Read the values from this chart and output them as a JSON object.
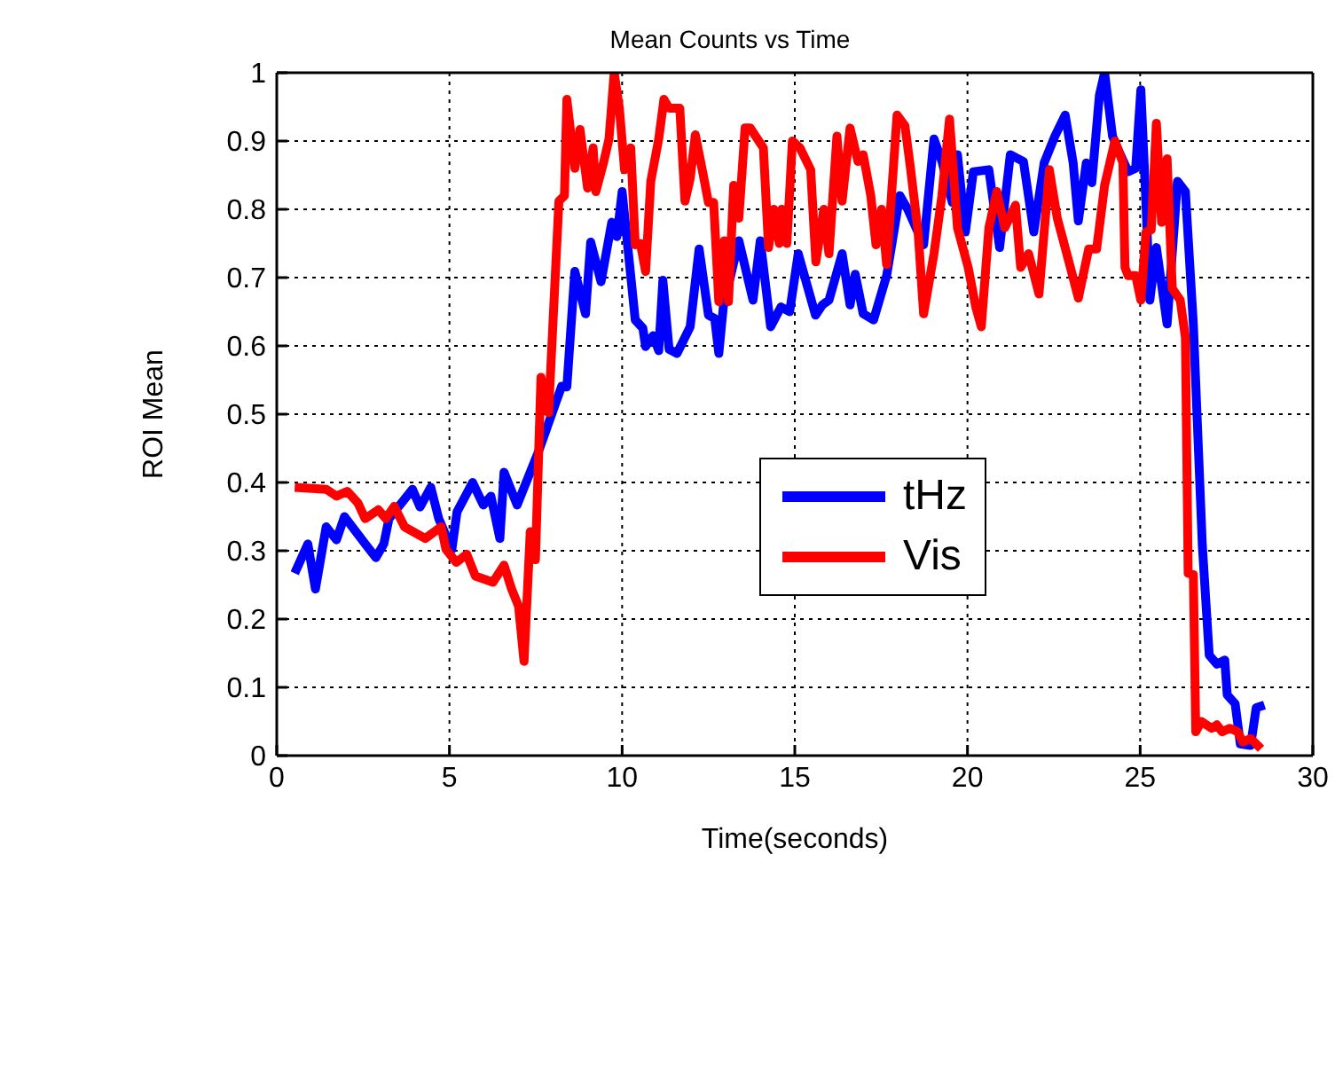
{
  "chart_data": {
    "type": "line",
    "title": "Mean Counts vs Time",
    "xlabel": "Time(seconds)",
    "ylabel": "ROI Mean",
    "xlim": [
      0,
      30
    ],
    "xticks": [
      0,
      5,
      10,
      15,
      20,
      25,
      30
    ],
    "ylim": [
      0,
      1
    ],
    "yticks": [
      0,
      0.1,
      0.2,
      0.3,
      0.4,
      0.5,
      0.6,
      0.7,
      0.8,
      0.9,
      1
    ],
    "grid": true,
    "legend": "right",
    "marker": "none",
    "line_style": "solid",
    "series": [
      {
        "name": "tHz",
        "color": "#0000ff",
        "x": [
          0.52,
          0.9,
          1.12,
          1.43,
          1.73,
          1.96,
          2.56,
          2.87,
          3.1,
          3.25,
          3.93,
          4.15,
          4.46,
          4.69,
          5.07,
          5.22,
          5.67,
          5.98,
          6.2,
          6.46,
          6.58,
          6.96,
          7.34,
          7.57,
          8.25,
          8.4,
          8.63,
          8.94,
          9.09,
          9.39,
          9.7,
          9.85,
          10.0,
          10.38,
          10.6,
          10.68,
          10.9,
          11.06,
          11.18,
          11.36,
          11.59,
          11.97,
          12.23,
          12.5,
          12.68,
          12.8,
          12.93,
          13.38,
          13.79,
          14.0,
          14.3,
          14.6,
          14.85,
          15.1,
          15.6,
          15.8,
          15.99,
          16.37,
          16.6,
          16.75,
          16.98,
          17.28,
          17.66,
          18.04,
          18.27,
          18.73,
          19.03,
          19.26,
          19.56,
          19.71,
          19.94,
          20.17,
          20.62,
          20.93,
          21.24,
          21.62,
          21.92,
          22.22,
          22.53,
          22.83,
          23.06,
          23.21,
          23.44,
          23.6,
          23.82,
          23.97,
          24.2,
          24.34,
          24.65,
          24.87,
          25.02,
          25.17,
          25.28,
          25.47,
          25.78,
          26.08,
          26.31,
          26.54,
          26.8,
          27.0,
          27.22,
          27.45,
          27.52,
          27.75,
          27.9,
          28.2,
          28.36,
          28.6
        ],
        "values": [
          0.267,
          0.31,
          0.244,
          0.335,
          0.316,
          0.35,
          0.31,
          0.29,
          0.31,
          0.347,
          0.39,
          0.364,
          0.393,
          0.347,
          0.302,
          0.357,
          0.4,
          0.367,
          0.38,
          0.318,
          0.415,
          0.367,
          0.415,
          0.444,
          0.541,
          0.54,
          0.709,
          0.647,
          0.752,
          0.694,
          0.781,
          0.76,
          0.826,
          0.638,
          0.626,
          0.599,
          0.615,
          0.593,
          0.696,
          0.595,
          0.589,
          0.628,
          0.742,
          0.645,
          0.64,
          0.589,
          0.657,
          0.754,
          0.667,
          0.754,
          0.628,
          0.657,
          0.65,
          0.735,
          0.645,
          0.66,
          0.667,
          0.735,
          0.66,
          0.705,
          0.647,
          0.638,
          0.703,
          0.82,
          0.8,
          0.748,
          0.903,
          0.87,
          0.81,
          0.88,
          0.767,
          0.855,
          0.858,
          0.744,
          0.88,
          0.87,
          0.767,
          0.868,
          0.907,
          0.938,
          0.868,
          0.783,
          0.868,
          0.839,
          0.967,
          1.0,
          0.907,
          0.89,
          0.855,
          0.86,
          0.975,
          0.806,
          0.667,
          0.744,
          0.632,
          0.841,
          0.826,
          0.632,
          0.308,
          0.147,
          0.134,
          0.14,
          0.089,
          0.076,
          0.017,
          0.015,
          0.07,
          0.074
        ]
      },
      {
        "name": "Vis",
        "color": "#ff0000",
        "x": [
          0.52,
          1.43,
          1.73,
          2.04,
          2.35,
          2.56,
          2.94,
          3.16,
          3.4,
          3.7,
          4.3,
          4.76,
          4.9,
          5.2,
          5.5,
          5.75,
          6.26,
          6.58,
          6.8,
          7.0,
          7.16,
          7.34,
          7.49,
          7.65,
          7.87,
          8.17,
          8.33,
          8.4,
          8.63,
          8.78,
          9.0,
          9.16,
          9.24,
          9.47,
          9.62,
          9.77,
          9.92,
          10.07,
          10.25,
          10.38,
          10.53,
          10.68,
          10.83,
          11.06,
          11.21,
          11.36,
          11.67,
          11.82,
          11.97,
          12.12,
          12.35,
          12.5,
          12.65,
          12.8,
          12.96,
          13.08,
          13.23,
          13.38,
          13.56,
          13.71,
          14.09,
          14.24,
          14.39,
          14.55,
          14.62,
          14.77,
          14.93,
          15.15,
          15.46,
          15.61,
          15.84,
          15.99,
          16.22,
          16.37,
          16.6,
          16.83,
          16.98,
          17.2,
          17.35,
          17.51,
          17.66,
          17.96,
          18.19,
          18.34,
          18.57,
          18.73,
          19.03,
          19.26,
          19.48,
          19.71,
          20.02,
          20.24,
          20.4,
          20.62,
          20.85,
          21.08,
          21.39,
          21.54,
          21.77,
          22.07,
          22.37,
          22.6,
          22.98,
          23.21,
          23.51,
          23.74,
          23.97,
          24.27,
          24.5,
          24.56,
          24.65,
          24.87,
          25.02,
          25.17,
          25.32,
          25.47,
          25.62,
          25.78,
          25.93,
          26.16,
          26.31,
          26.39,
          26.54,
          26.61,
          26.77,
          27.07,
          27.22,
          27.37,
          27.6,
          27.82,
          27.97,
          28.2,
          28.5
        ],
        "values": [
          0.393,
          0.39,
          0.38,
          0.387,
          0.37,
          0.347,
          0.36,
          0.347,
          0.365,
          0.335,
          0.318,
          0.335,
          0.302,
          0.283,
          0.295,
          0.263,
          0.254,
          0.279,
          0.244,
          0.219,
          0.138,
          0.328,
          0.287,
          0.554,
          0.502,
          0.812,
          0.82,
          0.961,
          0.86,
          0.917,
          0.831,
          0.89,
          0.826,
          0.87,
          0.903,
          1.0,
          0.948,
          0.858,
          0.89,
          0.748,
          0.75,
          0.709,
          0.841,
          0.903,
          0.961,
          0.948,
          0.948,
          0.812,
          0.845,
          0.909,
          0.85,
          0.81,
          0.81,
          0.665,
          0.754,
          0.665,
          0.835,
          0.787,
          0.919,
          0.919,
          0.89,
          0.744,
          0.8,
          0.75,
          0.8,
          0.75,
          0.9,
          0.89,
          0.858,
          0.723,
          0.8,
          0.735,
          0.907,
          0.812,
          0.919,
          0.87,
          0.88,
          0.82,
          0.748,
          0.8,
          0.719,
          0.938,
          0.922,
          0.864,
          0.767,
          0.647,
          0.735,
          0.82,
          0.932,
          0.773,
          0.715,
          0.657,
          0.628,
          0.773,
          0.826,
          0.773,
          0.806,
          0.715,
          0.735,
          0.676,
          0.858,
          0.787,
          0.715,
          0.67,
          0.742,
          0.742,
          0.835,
          0.9,
          0.868,
          0.715,
          0.703,
          0.703,
          0.667,
          0.767,
          0.77,
          0.926,
          0.781,
          0.874,
          0.684,
          0.667,
          0.612,
          0.267,
          0.265,
          0.035,
          0.05,
          0.04,
          0.045,
          0.035,
          0.04,
          0.035,
          0.02,
          0.025,
          0.01
        ]
      }
    ]
  }
}
